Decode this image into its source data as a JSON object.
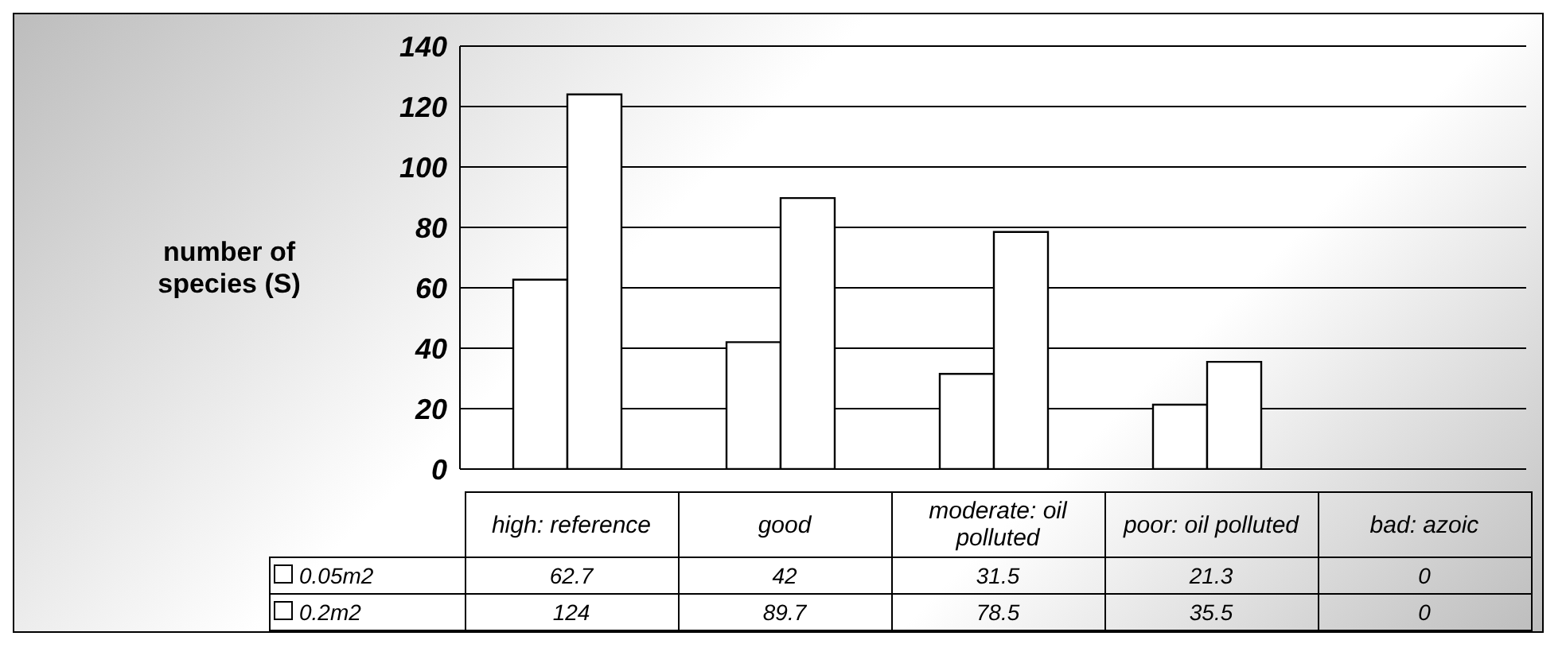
{
  "chart_data": {
    "type": "bar",
    "ylabel": "number of species (S)",
    "categories": [
      "high: reference",
      "good",
      "moderate: oil polluted",
      "poor: oil polluted",
      "bad: azoic"
    ],
    "series": [
      {
        "name": "0.05m2",
        "color": "#ffffff",
        "values": [
          62.7,
          42,
          31.5,
          21.3,
          0
        ]
      },
      {
        "name": "0.2m2",
        "color": "#ffffff",
        "values": [
          124,
          89.7,
          78.5,
          35.5,
          0
        ]
      }
    ],
    "ylim": [
      0,
      140
    ],
    "yticks": [
      0,
      20,
      40,
      60,
      80,
      100,
      120,
      140
    ],
    "grid": "y",
    "legend": "bottom",
    "data_labels": true
  }
}
